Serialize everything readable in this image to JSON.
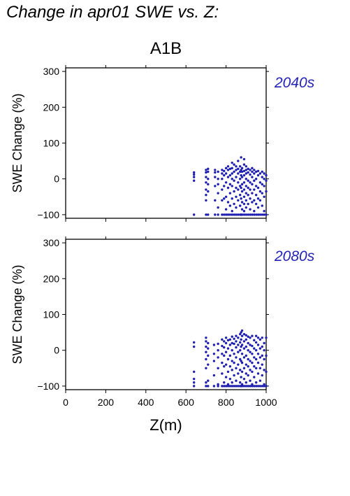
{
  "title": "Change in apr01 SWE vs. Z:",
  "scenario": "A1B",
  "colors": {
    "points": "#2020b0",
    "period_label": "#2323b8",
    "axes": "#000000"
  },
  "chart_data": [
    {
      "type": "scatter",
      "period": "2040s",
      "ylabel": "SWE Change (%)",
      "xlabel": "",
      "xlim": [
        0,
        1000
      ],
      "ylim": [
        -110,
        310
      ],
      "yticks": [
        -100,
        0,
        100,
        200,
        300
      ],
      "grid": false,
      "points": [
        [
          640,
          -100
        ],
        [
          640,
          -5
        ],
        [
          640,
          5
        ],
        [
          640,
          12
        ],
        [
          640,
          18
        ],
        [
          700,
          -100
        ],
        [
          700,
          -60
        ],
        [
          700,
          -45
        ],
        [
          700,
          -30
        ],
        [
          700,
          -10
        ],
        [
          700,
          5
        ],
        [
          700,
          18
        ],
        [
          700,
          25
        ],
        [
          710,
          -100
        ],
        [
          710,
          -35
        ],
        [
          710,
          -15
        ],
        [
          710,
          0
        ],
        [
          710,
          20
        ],
        [
          710,
          28
        ],
        [
          745,
          -100
        ],
        [
          745,
          -60
        ],
        [
          745,
          -20
        ],
        [
          745,
          5
        ],
        [
          745,
          18
        ],
        [
          745,
          25
        ],
        [
          760,
          -100
        ],
        [
          760,
          -80
        ],
        [
          760,
          -40
        ],
        [
          760,
          -15
        ],
        [
          760,
          0
        ],
        [
          760,
          20
        ],
        [
          780,
          -100
        ],
        [
          780,
          -60
        ],
        [
          780,
          -30
        ],
        [
          780,
          0
        ],
        [
          780,
          15
        ],
        [
          780,
          25
        ],
        [
          790,
          -100
        ],
        [
          790,
          -55
        ],
        [
          790,
          -20
        ],
        [
          790,
          10
        ],
        [
          790,
          22
        ],
        [
          800,
          -100
        ],
        [
          800,
          -85
        ],
        [
          800,
          -50
        ],
        [
          800,
          -10
        ],
        [
          800,
          15
        ],
        [
          800,
          30
        ],
        [
          810,
          -100
        ],
        [
          810,
          -65
        ],
        [
          810,
          -25
        ],
        [
          810,
          5
        ],
        [
          810,
          25
        ],
        [
          810,
          35
        ],
        [
          820,
          -100
        ],
        [
          820,
          -75
        ],
        [
          820,
          -40
        ],
        [
          820,
          -15
        ],
        [
          820,
          10
        ],
        [
          820,
          28
        ],
        [
          830,
          -100
        ],
        [
          830,
          -90
        ],
        [
          830,
          -55
        ],
        [
          830,
          -20
        ],
        [
          830,
          0
        ],
        [
          830,
          15
        ],
        [
          830,
          30
        ],
        [
          830,
          45
        ],
        [
          840,
          -100
        ],
        [
          840,
          -70
        ],
        [
          840,
          -35
        ],
        [
          840,
          -5
        ],
        [
          840,
          20
        ],
        [
          840,
          40
        ],
        [
          850,
          -100
        ],
        [
          850,
          -80
        ],
        [
          850,
          -50
        ],
        [
          850,
          -25
        ],
        [
          850,
          5
        ],
        [
          850,
          25
        ],
        [
          850,
          35
        ],
        [
          860,
          -100
        ],
        [
          860,
          -60
        ],
        [
          860,
          -30
        ],
        [
          860,
          -10
        ],
        [
          860,
          15
        ],
        [
          860,
          28
        ],
        [
          860,
          50
        ],
        [
          870,
          -100
        ],
        [
          870,
          -75
        ],
        [
          870,
          -45
        ],
        [
          870,
          -20
        ],
        [
          870,
          0
        ],
        [
          870,
          20
        ],
        [
          870,
          35
        ],
        [
          875,
          -100
        ],
        [
          875,
          -55
        ],
        [
          875,
          -25
        ],
        [
          875,
          10
        ],
        [
          875,
          25
        ],
        [
          875,
          60
        ],
        [
          880,
          -100
        ],
        [
          880,
          -85
        ],
        [
          880,
          -65
        ],
        [
          880,
          -35
        ],
        [
          880,
          -15
        ],
        [
          880,
          5
        ],
        [
          880,
          20
        ],
        [
          880,
          30
        ],
        [
          890,
          -100
        ],
        [
          890,
          -90
        ],
        [
          890,
          -70
        ],
        [
          890,
          -50
        ],
        [
          890,
          -30
        ],
        [
          890,
          -10
        ],
        [
          890,
          10
        ],
        [
          890,
          22
        ],
        [
          890,
          40
        ],
        [
          890,
          55
        ],
        [
          900,
          -100
        ],
        [
          900,
          -80
        ],
        [
          900,
          -60
        ],
        [
          900,
          -40
        ],
        [
          900,
          -20
        ],
        [
          900,
          0
        ],
        [
          900,
          15
        ],
        [
          900,
          25
        ],
        [
          900,
          35
        ],
        [
          910,
          -100
        ],
        [
          910,
          -70
        ],
        [
          910,
          -45
        ],
        [
          910,
          -25
        ],
        [
          910,
          -5
        ],
        [
          910,
          18
        ],
        [
          910,
          28
        ],
        [
          920,
          -100
        ],
        [
          920,
          -85
        ],
        [
          920,
          -55
        ],
        [
          920,
          -30
        ],
        [
          920,
          -10
        ],
        [
          920,
          12
        ],
        [
          920,
          25
        ],
        [
          930,
          -100
        ],
        [
          930,
          -65
        ],
        [
          930,
          -40
        ],
        [
          930,
          -15
        ],
        [
          930,
          5
        ],
        [
          930,
          20
        ],
        [
          930,
          30
        ],
        [
          940,
          -100
        ],
        [
          940,
          -90
        ],
        [
          940,
          -60
        ],
        [
          940,
          -30
        ],
        [
          940,
          -5
        ],
        [
          940,
          15
        ],
        [
          940,
          25
        ],
        [
          950,
          -100
        ],
        [
          950,
          -70
        ],
        [
          950,
          -45
        ],
        [
          950,
          -20
        ],
        [
          950,
          0
        ],
        [
          950,
          20
        ],
        [
          960,
          -100
        ],
        [
          960,
          -80
        ],
        [
          960,
          -55
        ],
        [
          960,
          -25
        ],
        [
          960,
          10
        ],
        [
          960,
          22
        ],
        [
          970,
          -100
        ],
        [
          970,
          -60
        ],
        [
          970,
          -35
        ],
        [
          970,
          -10
        ],
        [
          970,
          15
        ],
        [
          980,
          -100
        ],
        [
          980,
          -75
        ],
        [
          980,
          -40
        ],
        [
          980,
          -15
        ],
        [
          980,
          5
        ],
        [
          980,
          20
        ],
        [
          990,
          -100
        ],
        [
          990,
          -90
        ],
        [
          990,
          -50
        ],
        [
          990,
          -20
        ],
        [
          990,
          0
        ],
        [
          990,
          15
        ],
        [
          1000,
          -100
        ],
        [
          1000,
          -35
        ],
        [
          1000,
          -5
        ],
        [
          1000,
          10
        ]
      ]
    },
    {
      "type": "scatter",
      "period": "2080s",
      "ylabel": "SWE Change (%)",
      "xlabel": "Z(m)",
      "xlim": [
        0,
        1000
      ],
      "ylim": [
        -110,
        310
      ],
      "xticks": [
        0,
        200,
        400,
        600,
        800,
        1000
      ],
      "yticks": [
        -100,
        0,
        100,
        200,
        300
      ],
      "grid": false,
      "points": [
        [
          640,
          -100
        ],
        [
          640,
          -90
        ],
        [
          640,
          -80
        ],
        [
          640,
          -60
        ],
        [
          640,
          10
        ],
        [
          640,
          22
        ],
        [
          700,
          -100
        ],
        [
          700,
          -90
        ],
        [
          700,
          -50
        ],
        [
          700,
          -25
        ],
        [
          700,
          -5
        ],
        [
          700,
          10
        ],
        [
          700,
          25
        ],
        [
          700,
          35
        ],
        [
          710,
          -100
        ],
        [
          710,
          -85
        ],
        [
          710,
          -40
        ],
        [
          710,
          -15
        ],
        [
          710,
          5
        ],
        [
          710,
          20
        ],
        [
          740,
          -100
        ],
        [
          740,
          -70
        ],
        [
          740,
          -30
        ],
        [
          740,
          -10
        ],
        [
          740,
          15
        ],
        [
          760,
          -100
        ],
        [
          760,
          -95
        ],
        [
          760,
          -50
        ],
        [
          760,
          -20
        ],
        [
          760,
          0
        ],
        [
          760,
          18
        ],
        [
          780,
          -100
        ],
        [
          780,
          -65
        ],
        [
          780,
          -35
        ],
        [
          780,
          -10
        ],
        [
          780,
          12
        ],
        [
          780,
          30
        ],
        [
          790,
          -100
        ],
        [
          790,
          -90
        ],
        [
          790,
          -45
        ],
        [
          790,
          -15
        ],
        [
          790,
          8
        ],
        [
          790,
          25
        ],
        [
          800,
          -100
        ],
        [
          800,
          -75
        ],
        [
          800,
          -40
        ],
        [
          800,
          -5
        ],
        [
          800,
          20
        ],
        [
          800,
          35
        ],
        [
          810,
          -100
        ],
        [
          810,
          -95
        ],
        [
          810,
          -60
        ],
        [
          810,
          -25
        ],
        [
          810,
          5
        ],
        [
          810,
          28
        ],
        [
          820,
          -100
        ],
        [
          820,
          -80
        ],
        [
          820,
          -45
        ],
        [
          820,
          -15
        ],
        [
          820,
          15
        ],
        [
          820,
          30
        ],
        [
          830,
          -100
        ],
        [
          830,
          -90
        ],
        [
          830,
          -55
        ],
        [
          830,
          -30
        ],
        [
          830,
          0
        ],
        [
          830,
          20
        ],
        [
          830,
          38
        ],
        [
          840,
          -100
        ],
        [
          840,
          -70
        ],
        [
          840,
          -35
        ],
        [
          840,
          -10
        ],
        [
          840,
          18
        ],
        [
          840,
          32
        ],
        [
          850,
          -100
        ],
        [
          850,
          -85
        ],
        [
          850,
          -50
        ],
        [
          850,
          -20
        ],
        [
          850,
          8
        ],
        [
          850,
          25
        ],
        [
          850,
          40
        ],
        [
          860,
          -100
        ],
        [
          860,
          -65
        ],
        [
          860,
          -40
        ],
        [
          860,
          -5
        ],
        [
          860,
          15
        ],
        [
          860,
          35
        ],
        [
          870,
          -100
        ],
        [
          870,
          -90
        ],
        [
          870,
          -55
        ],
        [
          870,
          -25
        ],
        [
          870,
          0
        ],
        [
          870,
          22
        ],
        [
          870,
          45
        ],
        [
          875,
          -100
        ],
        [
          875,
          -75
        ],
        [
          875,
          -30
        ],
        [
          875,
          10
        ],
        [
          875,
          30
        ],
        [
          875,
          50
        ],
        [
          880,
          -100
        ],
        [
          880,
          -95
        ],
        [
          880,
          -60
        ],
        [
          880,
          -35
        ],
        [
          880,
          -10
        ],
        [
          880,
          15
        ],
        [
          880,
          40
        ],
        [
          880,
          55
        ],
        [
          890,
          -100
        ],
        [
          890,
          -80
        ],
        [
          890,
          -50
        ],
        [
          890,
          -20
        ],
        [
          890,
          5
        ],
        [
          890,
          25
        ],
        [
          890,
          45
        ],
        [
          900,
          -100
        ],
        [
          900,
          -90
        ],
        [
          900,
          -65
        ],
        [
          900,
          -40
        ],
        [
          900,
          -15
        ],
        [
          900,
          10
        ],
        [
          900,
          30
        ],
        [
          900,
          42
        ],
        [
          910,
          -100
        ],
        [
          910,
          -70
        ],
        [
          910,
          -45
        ],
        [
          910,
          -25
        ],
        [
          910,
          0
        ],
        [
          910,
          20
        ],
        [
          910,
          38
        ],
        [
          920,
          -100
        ],
        [
          920,
          -85
        ],
        [
          920,
          -55
        ],
        [
          920,
          -30
        ],
        [
          920,
          -5
        ],
        [
          920,
          15
        ],
        [
          920,
          35
        ],
        [
          930,
          -100
        ],
        [
          930,
          -95
        ],
        [
          930,
          -60
        ],
        [
          930,
          -35
        ],
        [
          930,
          -10
        ],
        [
          930,
          12
        ],
        [
          930,
          40
        ],
        [
          940,
          -100
        ],
        [
          940,
          -75
        ],
        [
          940,
          -45
        ],
        [
          940,
          -20
        ],
        [
          940,
          5
        ],
        [
          940,
          28
        ],
        [
          950,
          -100
        ],
        [
          950,
          -90
        ],
        [
          950,
          -50
        ],
        [
          950,
          -25
        ],
        [
          950,
          0
        ],
        [
          950,
          22
        ],
        [
          950,
          40
        ],
        [
          960,
          -100
        ],
        [
          960,
          -65
        ],
        [
          960,
          -35
        ],
        [
          960,
          -10
        ],
        [
          960,
          15
        ],
        [
          960,
          35
        ],
        [
          970,
          -100
        ],
        [
          970,
          -85
        ],
        [
          970,
          -50
        ],
        [
          970,
          -20
        ],
        [
          970,
          5
        ],
        [
          970,
          30
        ],
        [
          980,
          -100
        ],
        [
          980,
          -70
        ],
        [
          980,
          -40
        ],
        [
          980,
          -15
        ],
        [
          980,
          10
        ],
        [
          980,
          35
        ],
        [
          990,
          -100
        ],
        [
          990,
          -95
        ],
        [
          990,
          -55
        ],
        [
          990,
          -25
        ],
        [
          990,
          0
        ],
        [
          990,
          20
        ],
        [
          1000,
          -100
        ],
        [
          1000,
          -60
        ],
        [
          1000,
          -15
        ],
        [
          1000,
          35
        ]
      ]
    }
  ]
}
